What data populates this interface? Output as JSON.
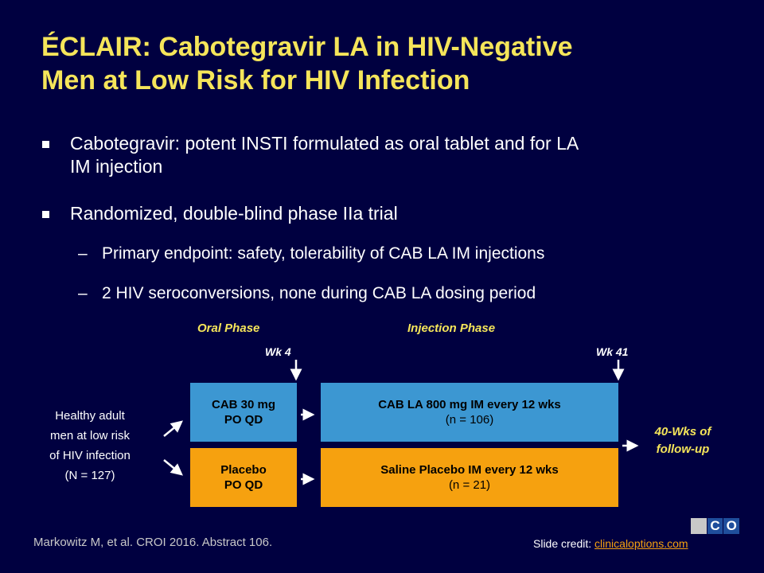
{
  "title": {
    "line1": "ÉCLAIR: Cabotegravir LA in HIV-Negative",
    "line2": "Men at Low Risk for HIV Infection"
  },
  "bullets": [
    {
      "line1": "Cabotegravir: potent INSTI formulated as oral tablet and for LA",
      "line2": "IM injection"
    },
    {
      "text": "Randomized, double-blind phase IIa trial"
    }
  ],
  "sub_bullets": [
    {
      "dash": "–",
      "text": "Primary endpoint: safety, tolerability of CAB LA IM injections"
    },
    {
      "dash": "–",
      "text": "2 HIV seroconversions, none during CAB LA dosing period"
    }
  ],
  "diagram": {
    "oral_phase": "Oral Phase",
    "injection_phase": "Injection Phase",
    "wk4": "Wk 4",
    "wk41": "Wk 41",
    "population": [
      "Healthy adult",
      "men at low risk",
      "of HIV infection",
      "(N = 127)"
    ],
    "cab_oral": [
      "CAB 30 mg",
      "PO QD"
    ],
    "placebo_oral": [
      "Placebo",
      "PO QD"
    ],
    "cab_la": {
      "label": "CAB LA 800 mg IM every 12 wks",
      "n": "(n = 106)"
    },
    "saline": {
      "label": "Saline Placebo IM every 12 wks",
      "n": "(n = 21)"
    },
    "follow_up": [
      "40-Wks of",
      "follow-up"
    ],
    "colors": {
      "active_arm": "#3c97d2",
      "placebo_arm": "#f6a10f",
      "highlight": "#f5e55a",
      "background": "#000040"
    }
  },
  "footer": {
    "citation": "Markowitz M, et al. CROI 2016. Abstract 106.",
    "credit_prefix": "Slide credit: ",
    "credit_link": "clinicaloptions.com",
    "logo_letters": [
      "C",
      "C",
      "O"
    ]
  }
}
